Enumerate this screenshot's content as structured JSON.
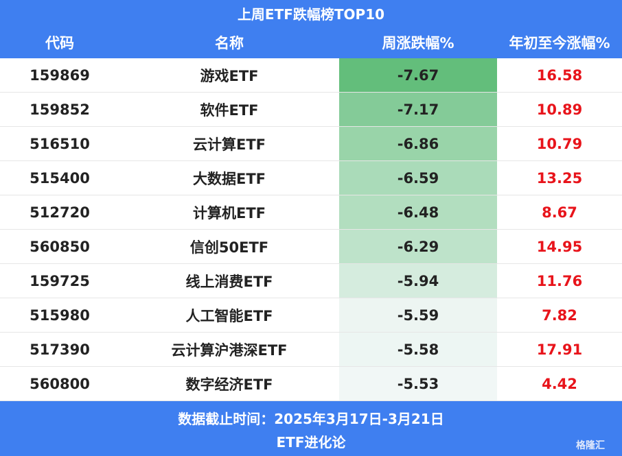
{
  "header": {
    "title": "上周ETF跌幅榜TOP10"
  },
  "table": {
    "columns": [
      "代码",
      "名称",
      "周涨跌幅%",
      "年初至今涨幅%"
    ],
    "rows": [
      [
        "159869",
        "游戏ETF",
        "-7.67",
        "16.58"
      ],
      [
        "159852",
        "软件ETF",
        "-7.17",
        "10.89"
      ],
      [
        "516510",
        "云计算ETF",
        "-6.86",
        "10.79"
      ],
      [
        "515400",
        "大数据ETF",
        "-6.59",
        "13.25"
      ],
      [
        "512720",
        "计算机ETF",
        "-6.48",
        "8.67"
      ],
      [
        "560850",
        "信创50ETF",
        "-6.29",
        "14.95"
      ],
      [
        "159725",
        "线上消费ETF",
        "-5.94",
        "11.76"
      ],
      [
        "515980",
        "人工智能ETF",
        "-5.59",
        "7.82"
      ],
      [
        "517390",
        "云计算沪港深ETF",
        "-5.58",
        "17.91"
      ],
      [
        "560800",
        "数字经济ETF",
        "-5.53",
        "4.42"
      ]
    ]
  },
  "footer": {
    "date_note": "数据截止时间：2025年3月17日-3月21日",
    "source": "ETF进化论",
    "watermark": "格隆汇"
  }
}
